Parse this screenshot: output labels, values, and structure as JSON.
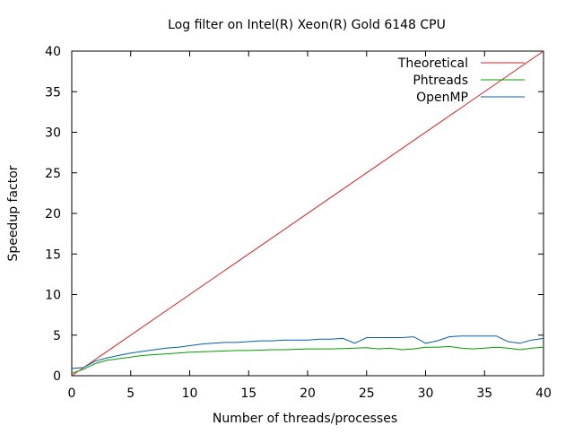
{
  "chart_data": {
    "type": "line",
    "title": "Log filter on Intel(R) Xeon(R) Gold 6148 CPU",
    "xlabel": "Number of threads/processes",
    "ylabel": "Speedup factor",
    "xlim": [
      0,
      40
    ],
    "ylim": [
      0,
      40
    ],
    "xticks": [
      "0",
      "5",
      "10",
      "15",
      "20",
      "25",
      "30",
      "35",
      "40"
    ],
    "yticks": [
      "0",
      "5",
      "10",
      "15",
      "20",
      "25",
      "30",
      "35",
      "40"
    ],
    "grid": false,
    "legend": "top-right",
    "series": [
      {
        "name": "Theoretical",
        "color": "#e41a1c",
        "x": [
          0,
          40
        ],
        "y": [
          0,
          40
        ]
      },
      {
        "name": "Phtreads",
        "color": "#00a000",
        "x": [
          0,
          1,
          2,
          3,
          4,
          5,
          6,
          7,
          8,
          9,
          10,
          11,
          12,
          13,
          14,
          15,
          16,
          17,
          18,
          19,
          20,
          21,
          22,
          23,
          24,
          25,
          26,
          27,
          28,
          29,
          30,
          31,
          32,
          33,
          34,
          35,
          36,
          37,
          38,
          39,
          40
        ],
        "y": [
          0.3,
          0.8,
          1.5,
          1.9,
          2.1,
          2.3,
          2.5,
          2.6,
          2.7,
          2.8,
          2.9,
          2.95,
          3.0,
          3.05,
          3.1,
          3.1,
          3.15,
          3.2,
          3.2,
          3.25,
          3.3,
          3.3,
          3.3,
          3.35,
          3.4,
          3.45,
          3.3,
          3.4,
          3.2,
          3.3,
          3.5,
          3.5,
          3.6,
          3.4,
          3.3,
          3.4,
          3.5,
          3.4,
          3.2,
          3.4,
          3.5
        ]
      },
      {
        "name": "OpenMP",
        "color": "#0060ad",
        "x": [
          0,
          1,
          2,
          3,
          4,
          5,
          6,
          7,
          8,
          9,
          10,
          11,
          12,
          13,
          14,
          15,
          16,
          17,
          18,
          19,
          20,
          21,
          22,
          23,
          24,
          25,
          26,
          27,
          28,
          29,
          30,
          31,
          32,
          33,
          34,
          35,
          36,
          37,
          38,
          39,
          40
        ],
        "y": [
          0.9,
          1.0,
          1.8,
          2.2,
          2.5,
          2.8,
          3.0,
          3.2,
          3.4,
          3.5,
          3.7,
          3.9,
          4.0,
          4.1,
          4.1,
          4.2,
          4.3,
          4.3,
          4.4,
          4.4,
          4.4,
          4.5,
          4.5,
          4.6,
          4.0,
          4.7,
          4.7,
          4.7,
          4.7,
          4.8,
          4.0,
          4.3,
          4.8,
          4.9,
          4.9,
          4.9,
          4.9,
          4.2,
          4.0,
          4.4,
          4.6
        ]
      }
    ]
  }
}
